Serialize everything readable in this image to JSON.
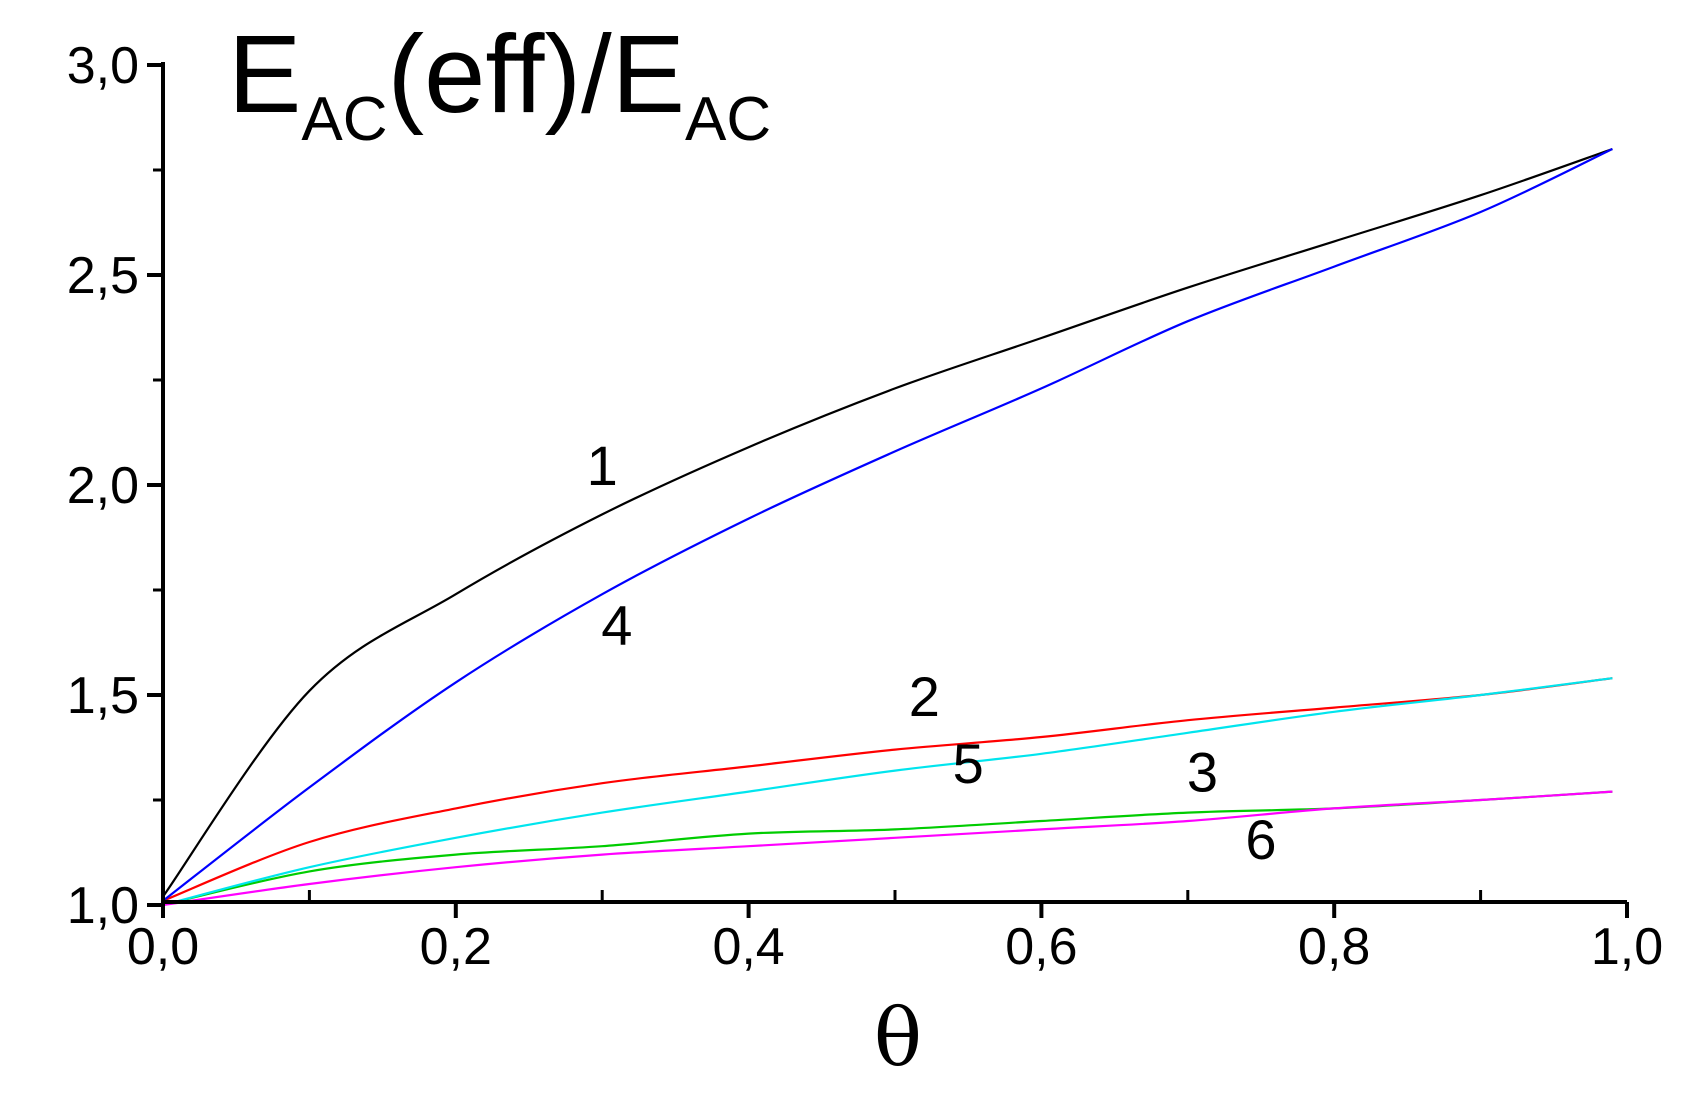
{
  "chart_data": {
    "type": "line",
    "title": {
      "main_prefix": "E",
      "sub1": "AC",
      "middle": "(eff)/E",
      "sub2": "AC"
    },
    "xlabel": "θ",
    "ylabel": "",
    "xlim": [
      0.0,
      1.0
    ],
    "ylim": [
      1.0,
      3.0
    ],
    "x_ticks": [
      {
        "value": 0.0,
        "label": "0,0"
      },
      {
        "value": 0.2,
        "label": "0,2"
      },
      {
        "value": 0.4,
        "label": "0,4"
      },
      {
        "value": 0.6,
        "label": "0,6"
      },
      {
        "value": 0.8,
        "label": "0,8"
      },
      {
        "value": 1.0,
        "label": "1,0"
      }
    ],
    "y_ticks": [
      {
        "value": 1.0,
        "label": "1,0"
      },
      {
        "value": 1.5,
        "label": "1,5"
      },
      {
        "value": 2.0,
        "label": "2,0"
      },
      {
        "value": 2.5,
        "label": "2,5"
      },
      {
        "value": 3.0,
        "label": "3,0"
      }
    ],
    "x_minor_step": 0.1,
    "y_minor_step": 0.25,
    "grid": false,
    "x": [
      0.0,
      0.1,
      0.2,
      0.3,
      0.4,
      0.5,
      0.6,
      0.7,
      0.8,
      0.9,
      0.99
    ],
    "series": [
      {
        "name": "1",
        "color": "#000000",
        "values": [
          1.02,
          1.51,
          1.74,
          1.93,
          2.09,
          2.23,
          2.35,
          2.47,
          2.58,
          2.69,
          2.8
        ]
      },
      {
        "name": "2",
        "color": "#ff0000",
        "values": [
          1.01,
          1.15,
          1.23,
          1.29,
          1.33,
          1.37,
          1.4,
          1.44,
          1.47,
          1.5,
          1.54
        ]
      },
      {
        "name": "3",
        "color": "#00cc00",
        "values": [
          1.0,
          1.08,
          1.12,
          1.14,
          1.17,
          1.18,
          1.2,
          1.22,
          1.23,
          1.25,
          1.27
        ]
      },
      {
        "name": "4",
        "color": "#0000ff",
        "values": [
          1.01,
          1.28,
          1.53,
          1.74,
          1.92,
          2.08,
          2.23,
          2.39,
          2.52,
          2.65,
          2.8
        ]
      },
      {
        "name": "5",
        "color": "#00e5ee",
        "values": [
          1.0,
          1.09,
          1.16,
          1.22,
          1.27,
          1.32,
          1.36,
          1.41,
          1.46,
          1.5,
          1.54
        ]
      },
      {
        "name": "6",
        "color": "#ff00ff",
        "values": [
          1.0,
          1.05,
          1.09,
          1.12,
          1.14,
          1.16,
          1.18,
          1.2,
          1.23,
          1.25,
          1.27
        ]
      }
    ],
    "annotations": [
      {
        "text": "1",
        "x": 0.3,
        "y": 2.0
      },
      {
        "text": "4",
        "x": 0.31,
        "y": 1.62
      },
      {
        "text": "2",
        "x": 0.52,
        "y": 1.45
      },
      {
        "text": "5",
        "x": 0.55,
        "y": 1.29
      },
      {
        "text": "3",
        "x": 0.71,
        "y": 1.27
      },
      {
        "text": "6",
        "x": 0.75,
        "y": 1.11
      }
    ]
  }
}
